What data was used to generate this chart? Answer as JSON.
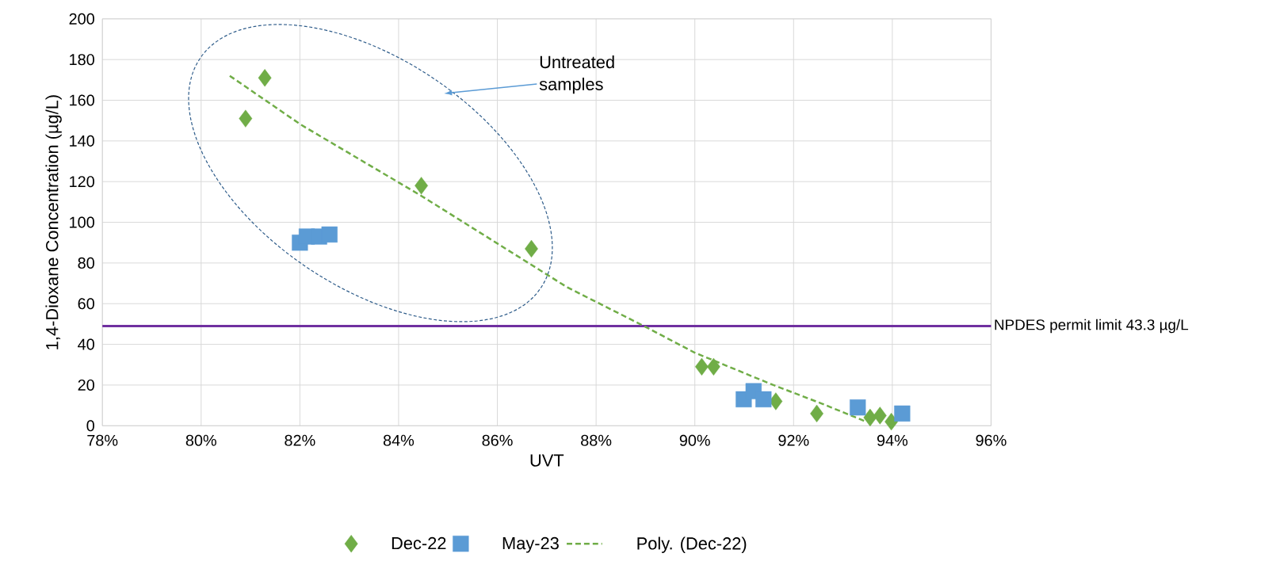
{
  "chart_data": {
    "type": "scatter",
    "xlabel": "UVT",
    "ylabel": "1,4-Dioxane Concentration (µg/L)",
    "series": [
      {
        "name": "Dec-22",
        "color": "#70ad47",
        "marker": "diamond",
        "x": [
          81.29,
          80.9,
          84.46,
          86.69,
          90.14,
          90.38,
          91.64,
          92.47,
          93.55,
          93.75,
          93.98
        ],
        "values": [
          171,
          151,
          118,
          87,
          29,
          29,
          12,
          6,
          4,
          5,
          2
        ]
      },
      {
        "name": "May-23",
        "color": "#5b9bd5",
        "marker": "square",
        "x": [
          82.0,
          82.14,
          82.39,
          82.6,
          90.99,
          91.19,
          91.39,
          93.3,
          94.2
        ],
        "values": [
          90,
          93,
          93,
          94,
          13,
          17,
          13,
          9,
          6
        ]
      },
      {
        "name": "Poly. (Dec-22)",
        "type": "line",
        "color": "#70ad47",
        "line_style": "dashed",
        "marker": "none",
        "x": [
          80.58,
          82.02,
          84.46,
          87.42,
          88.97,
          89.99,
          91.59,
          92.56,
          93.47
        ],
        "values": [
          172,
          148,
          113,
          68,
          49,
          36,
          20,
          11,
          2
        ]
      }
    ],
    "xlim": [
      78,
      96
    ],
    "xticks": [
      {
        "value": 78,
        "label": "78%"
      },
      {
        "value": 80,
        "label": "80%"
      },
      {
        "value": 82,
        "label": "82%"
      },
      {
        "value": 84,
        "label": "84%"
      },
      {
        "value": 86,
        "label": "86%"
      },
      {
        "value": 88,
        "label": "88%"
      },
      {
        "value": 90,
        "label": "90%"
      },
      {
        "value": 92,
        "label": "92%"
      },
      {
        "value": 94,
        "label": "94%"
      },
      {
        "value": 96,
        "label": "96%"
      }
    ],
    "ylim": [
      0,
      200
    ],
    "yticks": [
      0,
      20,
      40,
      60,
      80,
      100,
      120,
      140,
      160,
      180,
      200
    ],
    "ref_lines": [
      {
        "axis": "y",
        "value": 49,
        "label": "NPDES permit limit 43.3 µg/L",
        "color": "#7030a0"
      }
    ],
    "annotations": [
      "Untreated samples"
    ],
    "grid": true,
    "legend": "bottom"
  }
}
